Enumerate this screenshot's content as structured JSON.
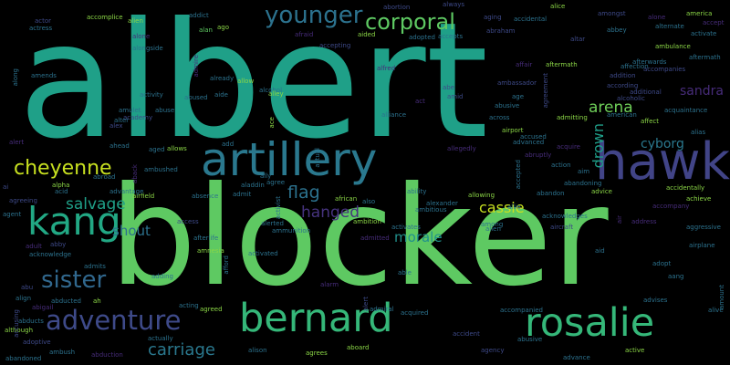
{
  "palette": {
    "background": "#000000",
    "teal": "#1fa088",
    "green": "#3dbc74",
    "lime": "#8bd646",
    "yellowgreen": "#c7e020",
    "light_green": "#70cf57",
    "steel": "#2c728e",
    "blue": "#31688e",
    "indigo": "#3e4a89",
    "purple": "#472c7a",
    "dark_purple": "#440154",
    "cyan": "#25858e",
    "sea": "#21918c"
  },
  "words": [
    {
      "text": "albert",
      "color": "#1fa088"
    },
    {
      "text": "blocker",
      "color": "#5ec962"
    },
    {
      "text": "hawk",
      "color": "#414487"
    },
    {
      "text": "artillery",
      "color": "#2a788e"
    },
    {
      "text": "bernard",
      "color": "#35b779"
    },
    {
      "text": "rosalie",
      "color": "#35b779"
    },
    {
      "text": "kang",
      "color": "#22a884"
    },
    {
      "text": "adventure",
      "color": "#3e4a89"
    },
    {
      "text": "younger",
      "color": "#2c728e"
    },
    {
      "text": "corporal",
      "color": "#5ec962"
    },
    {
      "text": "sister",
      "color": "#31688e"
    },
    {
      "text": "cheyenne",
      "color": "#c7e020"
    },
    {
      "text": "carriage",
      "color": "#2a788e"
    },
    {
      "text": "salvage",
      "color": "#1fa088"
    },
    {
      "text": "arena",
      "color": "#6ece58"
    },
    {
      "text": "flag",
      "color": "#2c728e"
    },
    {
      "text": "hanged",
      "color": "#46337e"
    },
    {
      "text": "cassie",
      "color": "#c7e020"
    },
    {
      "text": "morale",
      "color": "#21918c"
    },
    {
      "text": "shout",
      "color": "#2c728e"
    },
    {
      "text": "sandra",
      "color": "#472c7a"
    },
    {
      "text": "drown",
      "color": "#1f9e89"
    },
    {
      "text": "cyborg",
      "color": "#2a788e"
    },
    {
      "text": "abortion",
      "color": "#3e4a89"
    },
    {
      "text": "accomplice",
      "color": "#8bd646"
    },
    {
      "text": "actor",
      "color": "#3e4a89"
    },
    {
      "text": "actress",
      "color": "#2c728e"
    },
    {
      "text": "addict",
      "color": "#2c728e"
    },
    {
      "text": "alien",
      "color": "#8bd646"
    },
    {
      "text": "alan",
      "color": "#5ec962"
    },
    {
      "text": "ago",
      "color": "#8bd646"
    },
    {
      "text": "alone",
      "color": "#472c7a"
    },
    {
      "text": "alongside",
      "color": "#2c728e"
    },
    {
      "text": "admire",
      "color": "#472c7a"
    },
    {
      "text": "afraid",
      "color": "#472c7a"
    },
    {
      "text": "aided",
      "color": "#8bd646"
    },
    {
      "text": "always",
      "color": "#3e4a89"
    },
    {
      "text": "aging",
      "color": "#3e4a89"
    },
    {
      "text": "abraham",
      "color": "#3e4a89"
    },
    {
      "text": "adopted",
      "color": "#2c728e"
    },
    {
      "text": "accepts",
      "color": "#2c728e"
    },
    {
      "text": "accepting",
      "color": "#3e4a89"
    },
    {
      "text": "alice",
      "color": "#8bd646"
    },
    {
      "text": "accidental",
      "color": "#2c728e"
    },
    {
      "text": "altar",
      "color": "#3e4a89"
    },
    {
      "text": "amongst",
      "color": "#3e4a89"
    },
    {
      "text": "abbey",
      "color": "#2c728e"
    },
    {
      "text": "alone",
      "color": "#472c7a"
    },
    {
      "text": "america",
      "color": "#8bd646"
    },
    {
      "text": "alternate",
      "color": "#2c728e"
    },
    {
      "text": "accept",
      "color": "#472c7a"
    },
    {
      "text": "activate",
      "color": "#2c728e"
    },
    {
      "text": "ambulance",
      "color": "#8bd646"
    },
    {
      "text": "aftermath",
      "color": "#2c728e"
    },
    {
      "text": "afterwards",
      "color": "#2c728e"
    },
    {
      "text": "accompanies",
      "color": "#3e4a89"
    },
    {
      "text": "addition",
      "color": "#3e4a89"
    },
    {
      "text": "affection",
      "color": "#2c728e"
    },
    {
      "text": "affair",
      "color": "#472c7a"
    },
    {
      "text": "aftermath",
      "color": "#8bd646"
    },
    {
      "text": "alfred",
      "color": "#472c7a"
    },
    {
      "text": "abe",
      "color": "#3e4a89"
    },
    {
      "text": "amid",
      "color": "#3e4a89"
    },
    {
      "text": "act",
      "color": "#472c7a"
    },
    {
      "text": "ambassador",
      "color": "#3e4a89"
    },
    {
      "text": "age",
      "color": "#2c728e"
    },
    {
      "text": "agreement",
      "color": "#3e4a89"
    },
    {
      "text": "abusive",
      "color": "#2c728e"
    },
    {
      "text": "according",
      "color": "#3e4a89"
    },
    {
      "text": "additional",
      "color": "#3e4a89"
    },
    {
      "text": "alcoholic",
      "color": "#3e4a89"
    },
    {
      "text": "american",
      "color": "#2c728e"
    },
    {
      "text": "affect",
      "color": "#8bd646"
    },
    {
      "text": "acquaintance",
      "color": "#2c728e"
    },
    {
      "text": "alias",
      "color": "#2c728e"
    },
    {
      "text": "admitting",
      "color": "#8bd646"
    },
    {
      "text": "across",
      "color": "#2c728e"
    },
    {
      "text": "airport",
      "color": "#8bd646"
    },
    {
      "text": "advanced",
      "color": "#2c728e"
    },
    {
      "text": "accused",
      "color": "#2c728e"
    },
    {
      "text": "acquire",
      "color": "#472c7a"
    },
    {
      "text": "abruptly",
      "color": "#472c7a"
    },
    {
      "text": "action",
      "color": "#2c728e"
    },
    {
      "text": "aim",
      "color": "#2c728e"
    },
    {
      "text": "accepted",
      "color": "#2c728e"
    },
    {
      "text": "abandoning",
      "color": "#2c728e"
    },
    {
      "text": "advice",
      "color": "#8bd646"
    },
    {
      "text": "accidentally",
      "color": "#8bd646"
    },
    {
      "text": "achieve",
      "color": "#8bd646"
    },
    {
      "text": "accompany",
      "color": "#472c7a"
    },
    {
      "text": "aggressive",
      "color": "#2c728e"
    },
    {
      "text": "airplane",
      "color": "#2c728e"
    },
    {
      "text": "acknowledges",
      "color": "#2c728e"
    },
    {
      "text": "address",
      "color": "#472c7a"
    },
    {
      "text": "aircraft",
      "color": "#3e4a89"
    },
    {
      "text": "air",
      "color": "#472c7a"
    },
    {
      "text": "aid",
      "color": "#2c728e"
    },
    {
      "text": "adopt",
      "color": "#2c728e"
    },
    {
      "text": "aang",
      "color": "#2c728e"
    },
    {
      "text": "advises",
      "color": "#2c728e"
    },
    {
      "text": "alive",
      "color": "#2c728e"
    },
    {
      "text": "amount",
      "color": "#2c728e"
    },
    {
      "text": "active",
      "color": "#8bd646"
    },
    {
      "text": "advance",
      "color": "#2c728e"
    },
    {
      "text": "agency",
      "color": "#3e4a89"
    },
    {
      "text": "abusive",
      "color": "#2c728e"
    },
    {
      "text": "accompanied",
      "color": "#2c728e"
    },
    {
      "text": "accident",
      "color": "#3e4a89"
    },
    {
      "text": "aboard",
      "color": "#8bd646"
    },
    {
      "text": "agrees",
      "color": "#8bd646"
    },
    {
      "text": "alison",
      "color": "#2c728e"
    },
    {
      "text": "abduction",
      "color": "#472c7a"
    },
    {
      "text": "ambush",
      "color": "#2c728e"
    },
    {
      "text": "abandoned",
      "color": "#2c728e"
    },
    {
      "text": "adoptive",
      "color": "#3e4a89"
    },
    {
      "text": "abducts",
      "color": "#2c728e"
    },
    {
      "text": "although",
      "color": "#8bd646"
    },
    {
      "text": "actually",
      "color": "#2c728e"
    },
    {
      "text": "acting",
      "color": "#2c728e"
    },
    {
      "text": "agreed",
      "color": "#8bd646"
    },
    {
      "text": "abu",
      "color": "#3e4a89"
    },
    {
      "text": "align",
      "color": "#2c728e"
    },
    {
      "text": "abducted",
      "color": "#2c728e"
    },
    {
      "text": "abigail",
      "color": "#472c7a"
    },
    {
      "text": "accusing",
      "color": "#3e4a89"
    },
    {
      "text": "ah",
      "color": "#8bd646"
    },
    {
      "text": "admits",
      "color": "#2c728e"
    },
    {
      "text": "acknowledge",
      "color": "#2c728e"
    },
    {
      "text": "adult",
      "color": "#472c7a"
    },
    {
      "text": "abby",
      "color": "#3e4a89"
    },
    {
      "text": "agent",
      "color": "#2c728e"
    },
    {
      "text": "agreeing",
      "color": "#3e4a89"
    },
    {
      "text": "ai",
      "color": "#3e4a89"
    },
    {
      "text": "adding",
      "color": "#2c728e"
    },
    {
      "text": "amnesia",
      "color": "#8bd646"
    },
    {
      "text": "afterlife",
      "color": "#2c728e"
    },
    {
      "text": "access",
      "color": "#3e4a89"
    },
    {
      "text": "absence",
      "color": "#2c728e"
    },
    {
      "text": "airfield",
      "color": "#8bd646"
    },
    {
      "text": "advantage",
      "color": "#2c728e"
    },
    {
      "text": "ambushed",
      "color": "#2c728e"
    },
    {
      "text": "abroad",
      "color": "#2c728e"
    },
    {
      "text": "alpha",
      "color": "#8bd646"
    },
    {
      "text": "acid",
      "color": "#2c728e"
    },
    {
      "text": "ahead",
      "color": "#2c728e"
    },
    {
      "text": "aged",
      "color": "#2c728e"
    },
    {
      "text": "allows",
      "color": "#8bd646"
    },
    {
      "text": "add",
      "color": "#2c728e"
    },
    {
      "text": "ally",
      "color": "#2c728e"
    },
    {
      "text": "aladdin",
      "color": "#2c728e"
    },
    {
      "text": "admit",
      "color": "#2c728e"
    },
    {
      "text": "african",
      "color": "#8bd646"
    },
    {
      "text": "also",
      "color": "#2c728e"
    },
    {
      "text": "alexander",
      "color": "#2c728e"
    },
    {
      "text": "ability",
      "color": "#2c728e"
    },
    {
      "text": "ambitious",
      "color": "#2c728e"
    },
    {
      "text": "allowing",
      "color": "#8bd646"
    },
    {
      "text": "among",
      "color": "#2c728e"
    },
    {
      "text": "allie",
      "color": "#2c728e"
    },
    {
      "text": "abandon",
      "color": "#2c728e"
    },
    {
      "text": "ambition",
      "color": "#8bd646"
    },
    {
      "text": "activates",
      "color": "#2c728e"
    },
    {
      "text": "alien",
      "color": "#2c728e"
    },
    {
      "text": "alerted",
      "color": "#2c728e"
    },
    {
      "text": "ammunition",
      "color": "#2c728e"
    },
    {
      "text": "admitted",
      "color": "#472c7a"
    },
    {
      "text": "activated",
      "color": "#2c728e"
    },
    {
      "text": "able",
      "color": "#2c728e"
    },
    {
      "text": "admiral",
      "color": "#2c728e"
    },
    {
      "text": "acquired",
      "color": "#2c728e"
    },
    {
      "text": "alert",
      "color": "#3e4a89"
    },
    {
      "text": "alarm",
      "color": "#472c7a"
    },
    {
      "text": "afford",
      "color": "#2c728e"
    },
    {
      "text": "agree",
      "color": "#2c728e"
    },
    {
      "text": "activist",
      "color": "#2c728e"
    },
    {
      "text": "alert",
      "color": "#472c7a"
    },
    {
      "text": "ace",
      "color": "#8bd646"
    },
    {
      "text": "academy",
      "color": "#3e4a89"
    },
    {
      "text": "alter",
      "color": "#2c728e"
    },
    {
      "text": "alex",
      "color": "#3e4a89"
    },
    {
      "text": "activity",
      "color": "#2c728e"
    },
    {
      "text": "amulet",
      "color": "#2c728e"
    },
    {
      "text": "abused",
      "color": "#2c728e"
    },
    {
      "text": "aide",
      "color": "#2c728e"
    },
    {
      "text": "already",
      "color": "#2c728e"
    },
    {
      "text": "allow",
      "color": "#8bd646"
    },
    {
      "text": "abuse",
      "color": "#2c728e"
    },
    {
      "text": "alcohol",
      "color": "#2c728e"
    },
    {
      "text": "alley",
      "color": "#8bd646"
    },
    {
      "text": "alliance",
      "color": "#2c728e"
    },
    {
      "text": "along",
      "color": "#2c728e"
    },
    {
      "text": "amends",
      "color": "#2c728e"
    },
    {
      "text": "actual",
      "color": "#2c728e"
    },
    {
      "text": "aback",
      "color": "#472c7a"
    },
    {
      "text": "allegedly",
      "color": "#472c7a"
    }
  ]
}
